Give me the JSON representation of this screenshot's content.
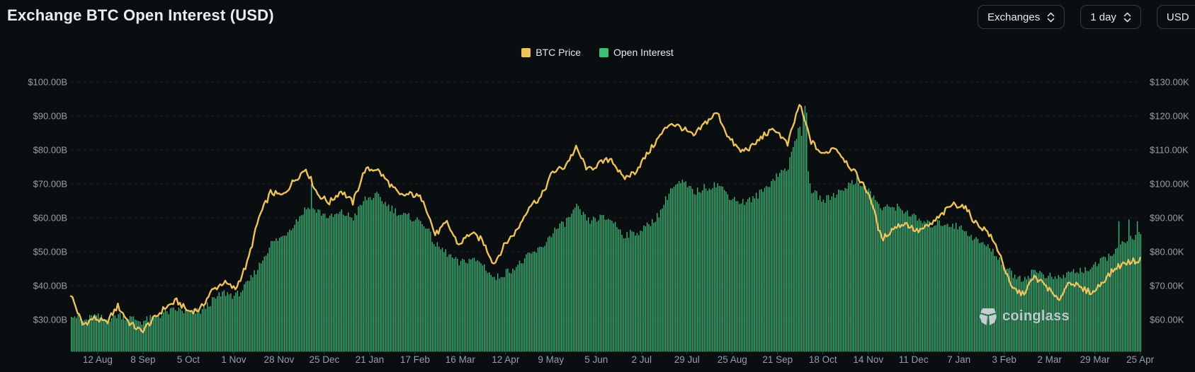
{
  "header": {
    "title": "Exchange BTC Open Interest (USD)",
    "controls": [
      {
        "label": "Exchanges"
      },
      {
        "label": "1 day"
      },
      {
        "label": "USD"
      }
    ]
  },
  "legend": [
    {
      "label": "BTC Price",
      "color": "#ecc25a"
    },
    {
      "label": "Open Interest",
      "color": "#3fbe77"
    }
  ],
  "watermark": "coinglass",
  "colors": {
    "background": "#0b0e11",
    "price_line": "#edc25c",
    "oi_bar": "#3bb274",
    "axis_text": "#959ea8",
    "grid": "rgba(148,158,168,0.13)",
    "title_text": "#eaecef"
  },
  "chart_data": {
    "type": "combo",
    "title": "Exchange BTC Open Interest (USD)",
    "x_tick_labels": [
      "12 Aug",
      "8 Sep",
      "5 Oct",
      "1 Nov",
      "28 Nov",
      "25 Dec",
      "21 Jan",
      "17 Feb",
      "16 Mar",
      "12 Apr",
      "9 May",
      "5 Jun",
      "2 Jul",
      "29 Jul",
      "25 Aug",
      "21 Sep",
      "18 Oct",
      "14 Nov",
      "11 Dec",
      "7 Jan",
      "3 Feb",
      "2 Mar",
      "29 Mar",
      "25 Apr"
    ],
    "x_tick_spacing_days": 27,
    "x_first_tick_day_offset": 16,
    "x_total_days": 637,
    "sampling": "values sampled weekly (every 7 days) across the visible range; day 0 = left edge of plot",
    "left_axis": {
      "name": "Open Interest",
      "unit": "USD billions",
      "tick_labels": [
        "$100.00B",
        "$90.00B",
        "$80.00B",
        "$70.00B",
        "$60.00B",
        "$50.00B",
        "$40.00B",
        "$30.00B"
      ],
      "gridline_values": [
        100,
        90,
        80,
        70,
        60,
        50,
        40,
        30
      ],
      "floor_value": 20.6
    },
    "right_axis": {
      "name": "BTC Price",
      "unit": "USD thousands",
      "tick_labels": [
        "$130.00K",
        "$120.00K",
        "$110.00K",
        "$100.00K",
        "$90.00K",
        "$80.00K",
        "$70.00K",
        "$60.00K"
      ],
      "gridline_values": [
        130,
        120,
        110,
        100,
        90,
        80,
        70,
        60
      ],
      "floor_value": 50.6
    },
    "grid": "horizontal dashed lines at every labeled tick",
    "legend_position": "top center",
    "series": [
      {
        "name": "BTC Price",
        "type": "line",
        "axis": "right",
        "color": "#edc25c",
        "values_unit": "USD thousands",
        "values": [
          67.5,
          58.5,
          60.5,
          59,
          64,
          59,
          56.5,
          60,
          63.5,
          65.5,
          62.5,
          63,
          68.5,
          71,
          69,
          76.5,
          90,
          97.5,
          96.5,
          101,
          104.5,
          97,
          94.5,
          98,
          94.5,
          104,
          104.5,
          100.5,
          96.5,
          97,
          95.5,
          85,
          88.5,
          82,
          85.5,
          83.5,
          76.5,
          82.5,
          86.5,
          93.5,
          96,
          103.5,
          105,
          110.5,
          104,
          106,
          107.5,
          101.5,
          103.5,
          108.5,
          113.5,
          118,
          116.5,
          114,
          118,
          121,
          113.5,
          109.5,
          111,
          114.5,
          116,
          111.5,
          123.5,
          112.5,
          108.5,
          111,
          106.5,
          102,
          96.5,
          83.5,
          87,
          88.5,
          86,
          87.5,
          90.5,
          94,
          93.5,
          88.5,
          86,
          80,
          69.5,
          67.5,
          72.5,
          70,
          65.5,
          71.5,
          69,
          68,
          72,
          75.5,
          77,
          77.5
        ]
      },
      {
        "name": "Open Interest",
        "type": "bar",
        "axis": "left",
        "color": "#3bb274",
        "values_unit": "USD billions",
        "values": [
          32,
          29.5,
          31,
          30,
          31.5,
          30.5,
          29.5,
          30.5,
          32,
          33,
          32,
          32.5,
          35.5,
          38,
          37,
          40.5,
          46,
          52.5,
          54.5,
          58.5,
          63,
          62,
          60,
          61.5,
          60,
          65.5,
          66.5,
          63.5,
          61,
          60,
          58.5,
          52,
          49.5,
          46.5,
          48,
          46.5,
          42,
          44,
          46,
          49,
          51,
          56,
          58.5,
          63,
          59,
          60,
          59.5,
          55,
          55.5,
          57.5,
          61,
          68.5,
          70.5,
          67.5,
          69,
          70,
          66.5,
          64.5,
          65.5,
          68.5,
          72.5,
          75,
          88,
          68,
          65,
          67,
          69.5,
          71,
          67.5,
          62.5,
          63.5,
          62,
          59.5,
          58,
          58.5,
          58,
          56.5,
          53.5,
          51.5,
          48,
          43.5,
          42,
          44.5,
          43,
          42,
          44,
          44.5,
          45.5,
          48,
          51,
          53.5,
          55
        ],
        "daily_spikes": [
          {
            "day": 143,
            "value": 70
          },
          {
            "day": 436,
            "value": 90
          },
          {
            "day": 437,
            "value": 93
          },
          {
            "day": 438,
            "value": 91
          },
          {
            "day": 468,
            "value": 73
          },
          {
            "day": 624,
            "value": 59
          },
          {
            "day": 630,
            "value": 59.5
          },
          {
            "day": 635,
            "value": 59
          }
        ]
      }
    ]
  }
}
